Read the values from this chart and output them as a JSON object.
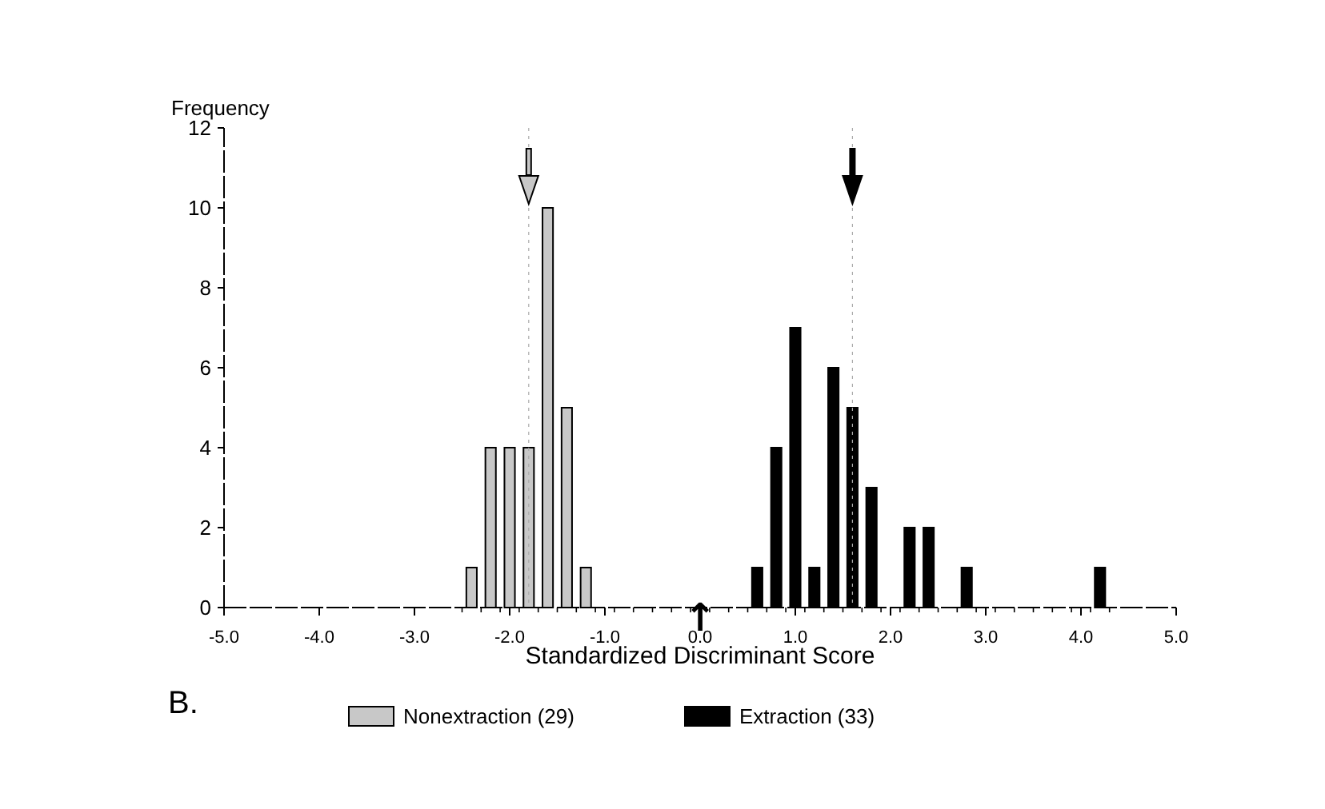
{
  "chart_data": {
    "type": "histogram",
    "xlabel": "Standardized Discriminant Score",
    "ylabel": "Frequency",
    "bins": [
      -2.5,
      -2.3,
      -2.1,
      -1.9,
      -1.7,
      -1.5,
      -1.3,
      -1.1,
      -0.9,
      -0.7,
      -0.5,
      -0.3,
      -0.1,
      0.1,
      0.3,
      0.5,
      0.7,
      0.9,
      1.1,
      1.3,
      1.5,
      1.7,
      1.9,
      2.1,
      2.3,
      2.5,
      2.7,
      2.9,
      3.1,
      3.3,
      3.5,
      3.7,
      3.9,
      4.1,
      4.3
    ],
    "series": [
      {
        "name": "Nonextraction (29)",
        "color": "#c8c8c8",
        "values": [
          1,
          4,
          4,
          4,
          10,
          5,
          1,
          0,
          0,
          0,
          0,
          0,
          0,
          0,
          0,
          0,
          0,
          0,
          0,
          0,
          0,
          0,
          0,
          0,
          0,
          0,
          0,
          0,
          0,
          0,
          0,
          0,
          0,
          0
        ]
      },
      {
        "name": "Extraction (33)",
        "color": "#000000",
        "values": [
          0,
          0,
          0,
          0,
          0,
          0,
          0,
          0,
          0,
          0,
          0,
          0,
          0,
          0,
          0,
          1,
          4,
          7,
          1,
          6,
          5,
          3,
          0,
          2,
          2,
          0,
          1,
          0,
          0,
          0,
          0,
          0,
          0,
          1
        ]
      }
    ],
    "xlim": [
      -5,
      5
    ],
    "xticks": [
      {
        "value": -5,
        "label": "-5.0"
      },
      {
        "value": -4,
        "label": "-4.0"
      },
      {
        "value": -3,
        "label": "-3.0"
      },
      {
        "value": -2,
        "label": "-2.0"
      },
      {
        "value": -1,
        "label": "-1.0"
      },
      {
        "value": 0,
        "label": "0.0"
      },
      {
        "value": 1,
        "label": "1.0"
      },
      {
        "value": 2,
        "label": "2.0"
      },
      {
        "value": 3,
        "label": "3.0"
      },
      {
        "value": 4,
        "label": "4.0"
      },
      {
        "value": 5,
        "label": "5.0"
      }
    ],
    "ylim": [
      0,
      12
    ],
    "yticks": [
      0,
      2,
      4,
      6,
      8,
      10,
      12
    ],
    "legend": "bottom",
    "grid": false,
    "ref_lines": [
      {
        "axis": "x",
        "value": -1.8
      },
      {
        "axis": "x",
        "value": 1.6
      }
    ],
    "annotations": [
      "B.",
      {
        "text": "↑",
        "x": 0,
        "y": 0
      }
    ]
  }
}
